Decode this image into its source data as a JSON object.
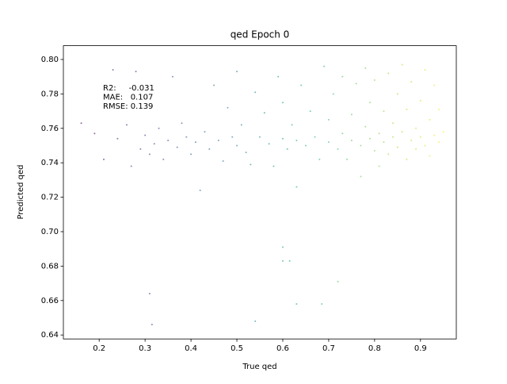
{
  "chart_data": {
    "type": "scatter",
    "title": "qed Epoch 0",
    "x_label": "True qed",
    "y_label": "Predicted qed",
    "annotation": [
      "R2:     -0.031",
      "MAE:   0.107",
      "RMSE: 0.139"
    ],
    "colormap": "viridis",
    "xlim": [
      0.122,
      0.978
    ],
    "ylim": [
      0.6377,
      0.808
    ],
    "xticks": [
      0.2,
      0.3,
      0.4,
      0.5,
      0.6,
      0.7,
      0.8,
      0.9
    ],
    "yticks": [
      0.64,
      0.66,
      0.68,
      {
        "value": 0.7,
        "label": "0.70"
      },
      0.72,
      0.74,
      0.76,
      0.78,
      {
        "value": 0.8,
        "label": "0.80"
      }
    ],
    "x": [
      0.161,
      0.19,
      0.21,
      0.23,
      0.24,
      0.26,
      0.27,
      0.28,
      0.29,
      0.3,
      0.31,
      0.32,
      0.33,
      0.34,
      0.35,
      0.36,
      0.37,
      0.38,
      0.39,
      0.4,
      0.41,
      0.42,
      0.43,
      0.44,
      0.45,
      0.46,
      0.47,
      0.48,
      0.49,
      0.5,
      0.5,
      0.51,
      0.52,
      0.53,
      0.54,
      0.55,
      0.56,
      0.57,
      0.58,
      0.59,
      0.6,
      0.6,
      0.61,
      0.62,
      0.63,
      0.63,
      0.64,
      0.65,
      0.66,
      0.67,
      0.68,
      0.69,
      0.7,
      0.7,
      0.71,
      0.72,
      0.73,
      0.73,
      0.74,
      0.75,
      0.75,
      0.76,
      0.77,
      0.77,
      0.78,
      0.78,
      0.79,
      0.79,
      0.8,
      0.8,
      0.81,
      0.81,
      0.82,
      0.82,
      0.83,
      0.83,
      0.84,
      0.84,
      0.85,
      0.85,
      0.86,
      0.86,
      0.87,
      0.87,
      0.88,
      0.88,
      0.89,
      0.89,
      0.9,
      0.9,
      0.91,
      0.91,
      0.92,
      0.92,
      0.93,
      0.93,
      0.94,
      0.94,
      0.95,
      0.31,
      0.315,
      0.54,
      0.63,
      0.685,
      0.6,
      0.6,
      0.615,
      0.72
    ],
    "y": [
      0.763,
      0.757,
      0.742,
      0.794,
      0.754,
      0.762,
      0.738,
      0.793,
      0.748,
      0.756,
      0.745,
      0.751,
      0.76,
      0.742,
      0.753,
      0.79,
      0.749,
      0.763,
      0.755,
      0.745,
      0.752,
      0.724,
      0.758,
      0.748,
      0.785,
      0.753,
      0.741,
      0.772,
      0.755,
      0.75,
      0.793,
      0.762,
      0.746,
      0.739,
      0.781,
      0.755,
      0.769,
      0.751,
      0.738,
      0.79,
      0.754,
      0.775,
      0.748,
      0.762,
      0.753,
      0.726,
      0.785,
      0.75,
      0.77,
      0.755,
      0.742,
      0.796,
      0.752,
      0.765,
      0.78,
      0.748,
      0.757,
      0.79,
      0.742,
      0.768,
      0.753,
      0.786,
      0.75,
      0.732,
      0.761,
      0.795,
      0.754,
      0.775,
      0.747,
      0.788,
      0.757,
      0.738,
      0.77,
      0.752,
      0.792,
      0.745,
      0.763,
      0.755,
      0.78,
      0.749,
      0.797,
      0.758,
      0.742,
      0.771,
      0.753,
      0.787,
      0.76,
      0.748,
      0.776,
      0.755,
      0.794,
      0.75,
      0.765,
      0.744,
      0.785,
      0.756,
      0.752,
      0.771,
      0.758,
      0.664,
      0.646,
      0.648,
      0.658,
      0.658,
      0.691,
      0.683,
      0.683,
      0.671
    ]
  }
}
